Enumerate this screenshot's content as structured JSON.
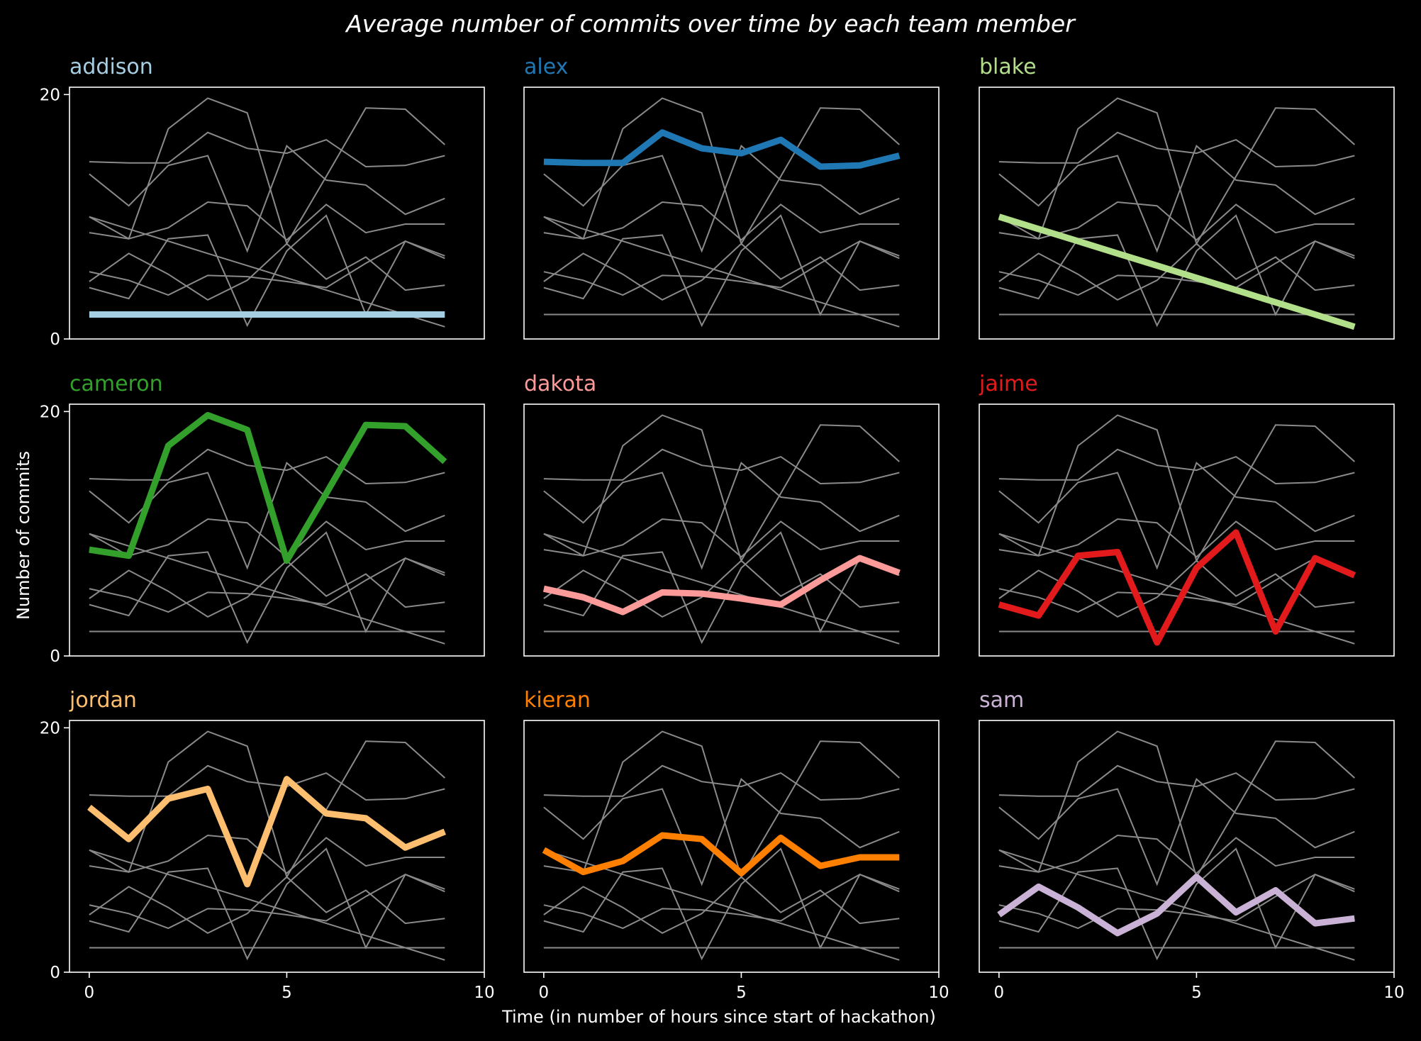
{
  "chart_data": {
    "type": "line",
    "title": "Average number of commits over time by each team member",
    "xlabel": "Time (in number of hours since start of hackathon)",
    "ylabel": "Number of commits",
    "xlim": [
      -0.5,
      10
    ],
    "ylim": [
      0,
      20.6
    ],
    "xticks": [
      0,
      5,
      10
    ],
    "yticks": [
      0,
      20
    ],
    "grid": false,
    "background": "#000000",
    "context_line_color": "#8a8a8a",
    "x": [
      0,
      1,
      2,
      3,
      4,
      5,
      6,
      7,
      8,
      9
    ],
    "series": [
      {
        "name": "addison",
        "color": "#a6cee3",
        "values": [
          2,
          2,
          2,
          2,
          2,
          2,
          2,
          2,
          2,
          2
        ]
      },
      {
        "name": "alex",
        "color": "#1f78b4",
        "values": [
          14.5,
          14.4,
          14.4,
          16.9,
          15.6,
          15.2,
          16.3,
          14.1,
          14.2,
          15
        ]
      },
      {
        "name": "blake",
        "color": "#b2df8a",
        "values": [
          10,
          9,
          8,
          7,
          6,
          5,
          4,
          3,
          2,
          1
        ]
      },
      {
        "name": "cameron",
        "color": "#33a02c",
        "values": [
          8.7,
          8.2,
          17.2,
          19.7,
          18.5,
          7.8,
          13.3,
          18.9,
          18.8,
          15.9
        ]
      },
      {
        "name": "dakota",
        "color": "#fb9a99",
        "values": [
          5.5,
          4.8,
          3.6,
          5.2,
          5.1,
          4.7,
          4.2,
          6.2,
          8.0,
          6.8
        ]
      },
      {
        "name": "jaime",
        "color": "#e31a1c",
        "values": [
          4.2,
          3.3,
          8.2,
          8.5,
          1.1,
          7.2,
          10.1,
          2.0,
          8.0,
          6.6
        ]
      },
      {
        "name": "jordan",
        "color": "#fdbf6f",
        "values": [
          13.5,
          10.9,
          14.2,
          15.0,
          7.2,
          15.8,
          13.0,
          12.6,
          10.2,
          11.5
        ]
      },
      {
        "name": "kieran",
        "color": "#ff7f00",
        "values": [
          10,
          8.2,
          9.1,
          11.2,
          10.9,
          8.1,
          11.0,
          8.7,
          9.4,
          9.4
        ]
      },
      {
        "name": "sam",
        "color": "#cab2d6",
        "values": [
          4.7,
          7.0,
          5.3,
          3.2,
          4.8,
          7.8,
          4.9,
          6.7,
          4.0,
          4.4
        ]
      }
    ]
  }
}
